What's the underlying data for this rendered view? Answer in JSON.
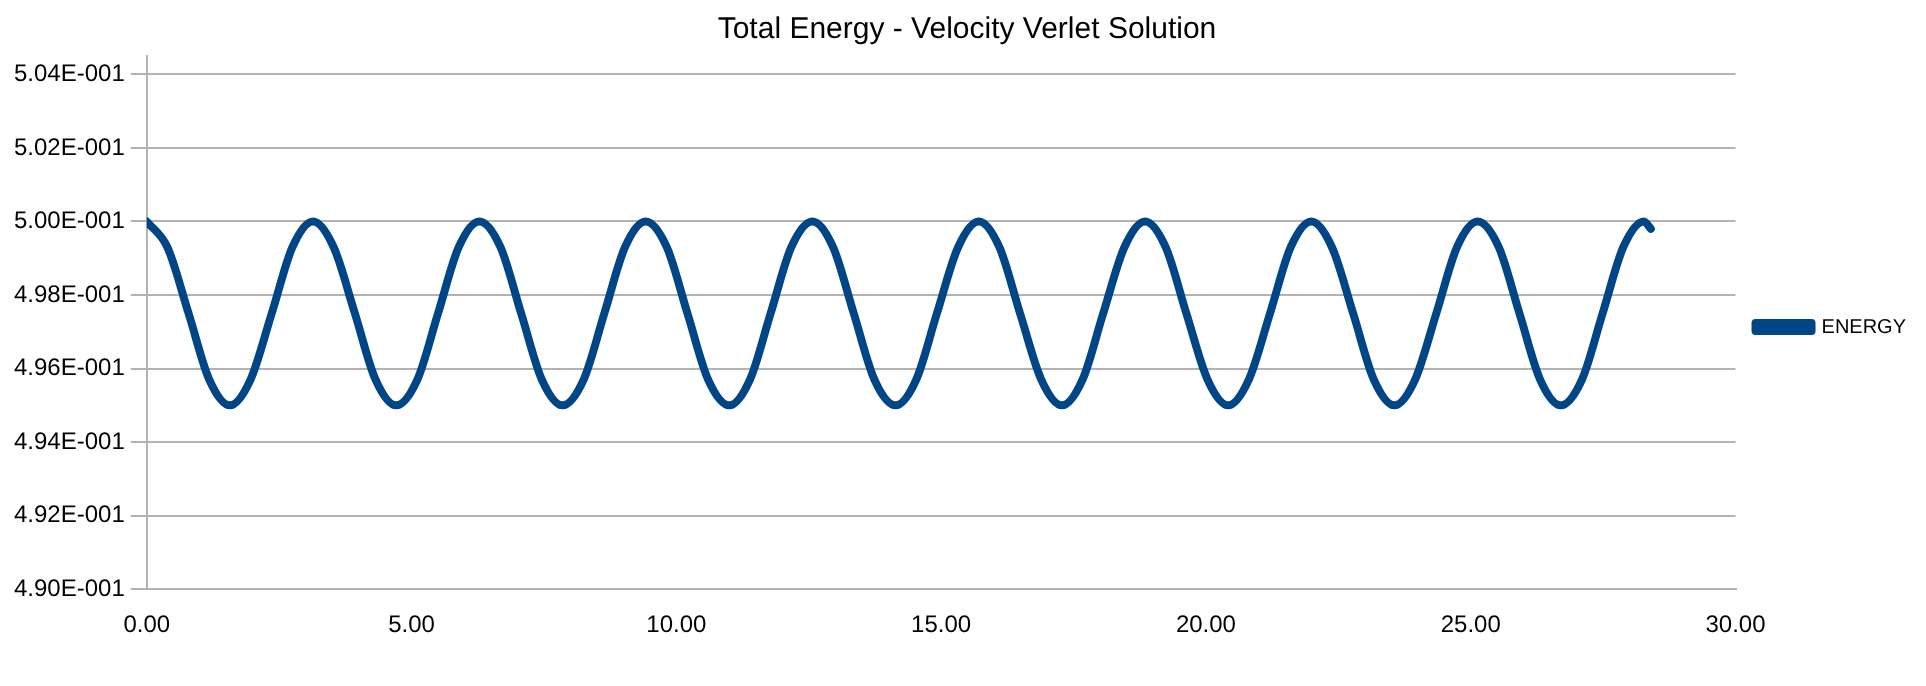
{
  "chart_data": {
    "type": "line",
    "title": "Total Energy - Velocity Verlet Solution",
    "x": [
      0,
      0.39,
      0.79,
      1.18,
      1.57,
      1.96,
      2.36,
      2.75,
      3.14,
      3.53,
      3.93,
      4.32,
      4.71,
      5.11,
      5.5,
      5.89,
      6.28,
      6.68,
      7.07,
      7.46,
      7.85,
      8.25,
      8.64,
      9.03,
      9.42,
      9.82,
      10.21,
      10.6,
      11,
      11.39,
      11.78,
      12.17,
      12.57,
      12.96,
      13.35,
      13.74,
      14.14,
      14.53,
      14.92,
      15.32,
      15.71,
      16.1,
      16.49,
      16.89,
      17.28,
      17.67,
      18.06,
      18.46,
      18.85,
      19.24,
      19.63,
      20.03,
      20.42,
      20.81,
      21.21,
      21.6,
      21.99,
      22.38,
      22.78,
      23.17,
      23.56,
      23.95,
      24.35,
      24.74,
      25.13,
      25.53,
      25.92,
      26.31,
      26.7,
      27.1,
      27.49,
      27.88,
      28.27,
      28.4
    ],
    "series": [
      {
        "name": "ENERGY",
        "color": "#004586",
        "values": [
          0.5,
          0.4993,
          0.4975,
          0.4957,
          0.495,
          0.4957,
          0.4975,
          0.4993,
          0.5,
          0.4993,
          0.4975,
          0.4957,
          0.495,
          0.4957,
          0.4975,
          0.4993,
          0.5,
          0.4993,
          0.4975,
          0.4957,
          0.495,
          0.4957,
          0.4975,
          0.4993,
          0.5,
          0.4993,
          0.4975,
          0.4957,
          0.495,
          0.4957,
          0.4975,
          0.4993,
          0.5,
          0.4993,
          0.4975,
          0.4957,
          0.495,
          0.4957,
          0.4975,
          0.4993,
          0.5,
          0.4993,
          0.4975,
          0.4957,
          0.495,
          0.4957,
          0.4975,
          0.4993,
          0.5,
          0.4993,
          0.4975,
          0.4957,
          0.495,
          0.4957,
          0.4975,
          0.4993,
          0.5,
          0.4993,
          0.4975,
          0.4957,
          0.495,
          0.4957,
          0.4975,
          0.4993,
          0.5,
          0.4993,
          0.4975,
          0.4957,
          0.495,
          0.4957,
          0.4975,
          0.4993,
          0.5,
          0.4998
        ]
      }
    ],
    "xlim": [
      0,
      30
    ],
    "xticks": [
      {
        "value": 0,
        "label": "0.00"
      },
      {
        "value": 5,
        "label": "5.00"
      },
      {
        "value": 10,
        "label": "10.00"
      },
      {
        "value": 15,
        "label": "15.00"
      },
      {
        "value": 20,
        "label": "20.00"
      },
      {
        "value": 25,
        "label": "25.00"
      },
      {
        "value": 30,
        "label": "30.00"
      }
    ],
    "ylim": [
      0.49,
      0.5045
    ],
    "yticks": [
      {
        "value": 0.49,
        "label": "4.90E-001"
      },
      {
        "value": 0.492,
        "label": "4.92E-001"
      },
      {
        "value": 0.494,
        "label": "4.94E-001"
      },
      {
        "value": 0.496,
        "label": "4.96E-001"
      },
      {
        "value": 0.498,
        "label": "4.98E-001"
      },
      {
        "value": 0.5,
        "label": "5.00E-001"
      },
      {
        "value": 0.502,
        "label": "5.02E-001"
      },
      {
        "value": 0.504,
        "label": "5.04E-001"
      }
    ],
    "grid": "y",
    "legend": "right",
    "marker": "none",
    "line_style": "solid"
  }
}
